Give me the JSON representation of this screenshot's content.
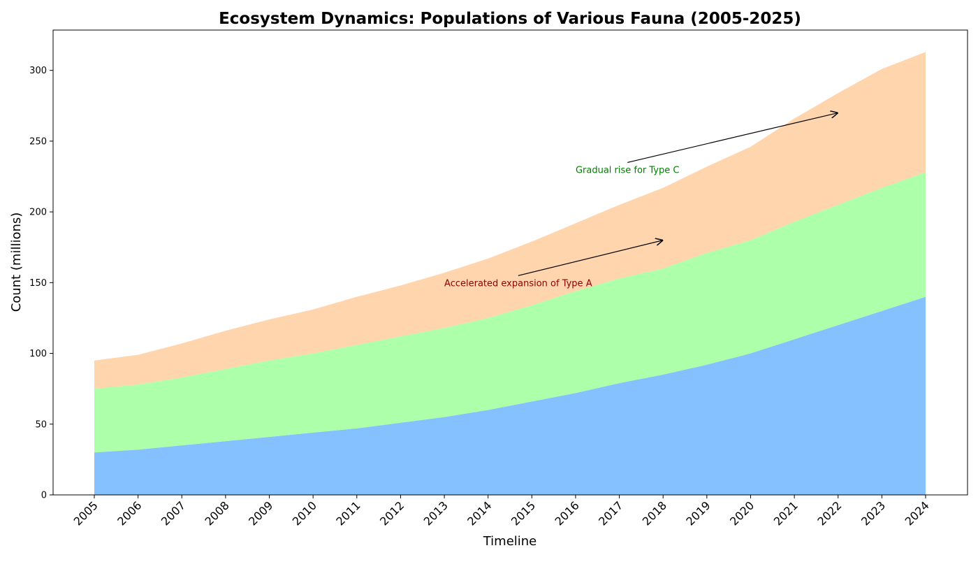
{
  "chart_data": {
    "type": "area",
    "stacked": true,
    "title": "Ecosystem Dynamics: Populations of Various Fauna (2005-2025)",
    "xlabel": "Timeline",
    "ylabel": "Count (millions)",
    "x": [
      "2005",
      "2006",
      "2007",
      "2008",
      "2009",
      "2010",
      "2011",
      "2012",
      "2013",
      "2014",
      "2015",
      "2016",
      "2017",
      "2018",
      "2019",
      "2020",
      "2021",
      "2022",
      "2023",
      "2024"
    ],
    "yticks": [
      0,
      50,
      100,
      150,
      200,
      250,
      300
    ],
    "ylim": [
      0,
      328.5
    ],
    "grid": false,
    "legend": "none",
    "series": [
      {
        "color": "#85c1ff",
        "values": [
          30,
          32,
          35,
          38,
          41,
          44,
          47,
          51,
          55,
          60,
          66,
          72,
          79,
          85,
          92,
          100,
          110,
          120,
          130,
          140
        ]
      },
      {
        "color": "#adffa9",
        "values": [
          45,
          46,
          48,
          51,
          54,
          56,
          59,
          61,
          63,
          65,
          68,
          72,
          74,
          75,
          79,
          80,
          83,
          85,
          87,
          88
        ]
      },
      {
        "color": "#ffd5ad",
        "values": [
          20,
          21,
          24,
          27,
          29,
          31,
          34,
          36,
          39,
          42,
          45,
          48,
          52,
          57,
          61,
          66,
          73,
          79,
          84,
          85
        ]
      }
    ],
    "annotations": [
      {
        "text": "Accelerated expansion of Type A",
        "color": "#8b0000",
        "text_x": "2013",
        "text_y": 150,
        "arrow_x": "2018",
        "arrow_y": 180
      },
      {
        "text": "Gradual rise for Type C",
        "color": "#008000",
        "text_x": "2016",
        "text_y": 230,
        "arrow_x": "2022",
        "arrow_y": 270
      }
    ]
  }
}
